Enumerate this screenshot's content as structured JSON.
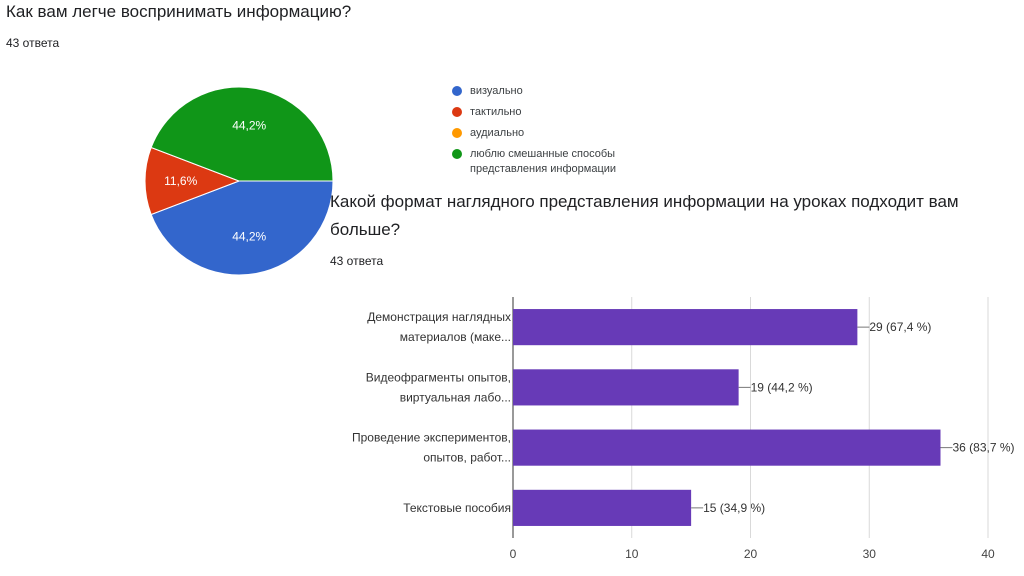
{
  "q1": {
    "title": "Как вам легче воспринимать информацию?",
    "responses": "43 ответа"
  },
  "q2": {
    "title": "Какой формат наглядного представления информации на уроках подходит вам больше?",
    "responses": "43 ответа"
  },
  "chart_data": [
    {
      "type": "pie",
      "categories": [
        "визуально",
        "тактильно",
        "аудиально",
        "люблю смешанные способы представления информации"
      ],
      "values": [
        44.2,
        11.6,
        0,
        44.2
      ],
      "value_labels": [
        "44,2%",
        "11,6%",
        "",
        "44,2%"
      ],
      "colors": [
        "#3366cc",
        "#dc3912",
        "#ff9900",
        "#109618"
      ],
      "legend_position": "right"
    },
    {
      "type": "bar",
      "orientation": "horizontal",
      "categories": [
        [
          "Демонстрация наглядных",
          "материалов (маке..."
        ],
        [
          "Видеофрагменты опытов,",
          "виртуальная лабо..."
        ],
        [
          "Проведение экспериментов,",
          "опытов, работ..."
        ],
        [
          "Текстовые пособия"
        ]
      ],
      "values": [
        29,
        19,
        36,
        15
      ],
      "value_labels": [
        "29 (67,4 %)",
        "19 (44,2 %)",
        "36 (83,7 %)",
        "15 (34,9 %)"
      ],
      "xlim": [
        0,
        40
      ],
      "xticks": [
        0,
        10,
        20,
        30,
        40
      ],
      "color": "#673ab7",
      "grid": true
    }
  ]
}
